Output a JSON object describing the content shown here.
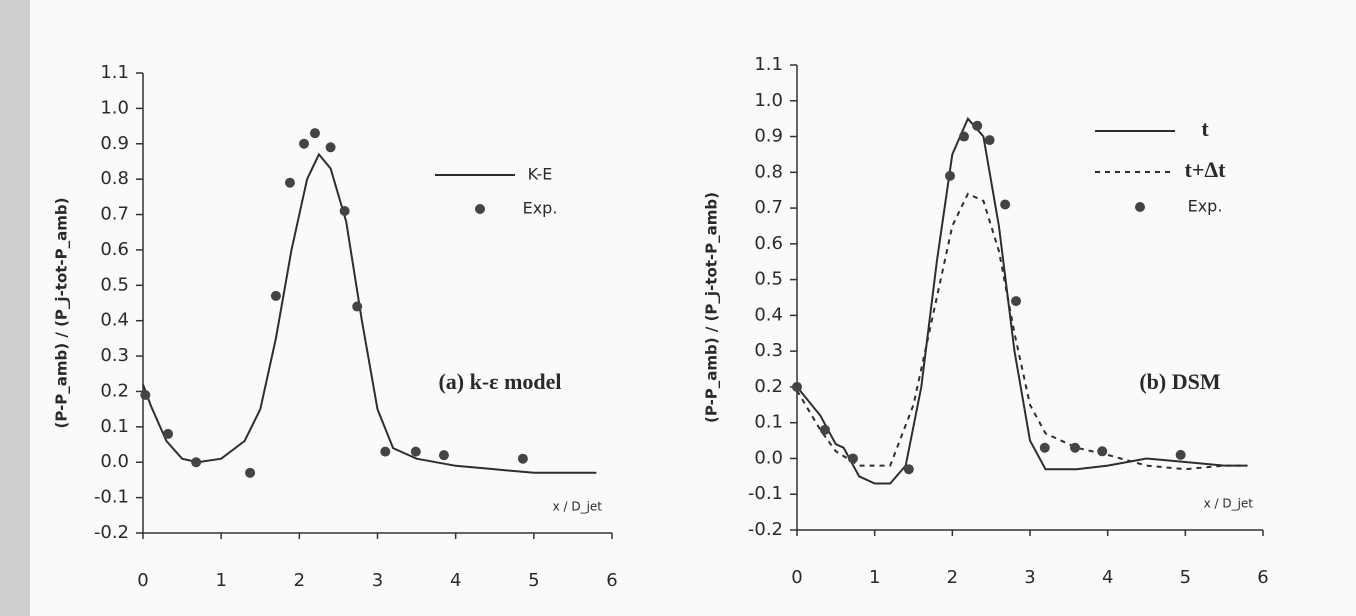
{
  "chart_data": [
    {
      "type": "line",
      "annotation": "(a) k-ε model",
      "x_label": "x / D_jet",
      "y_label": "(P-P_amb) / (P_j-tot-P_amb)",
      "xlim": [
        0,
        6
      ],
      "xticks": [
        0,
        1,
        2,
        3,
        4,
        5,
        6
      ],
      "ylim": [
        -0.2,
        1.1
      ],
      "yticks": [
        -0.2,
        -0.1,
        {
          "value": 0,
          "label": "0.0"
        },
        0.1,
        0.2,
        0.3,
        0.4,
        0.5,
        0.6,
        0.7,
        0.8,
        0.9,
        {
          "value": 1,
          "label": "1.0"
        },
        1.1
      ],
      "series": [
        {
          "name": "K-E",
          "type": "line",
          "style": "solid",
          "color": "#2e2e2e",
          "x": [
            0,
            0.1,
            0.3,
            0.5,
            0.7,
            1.0,
            1.3,
            1.5,
            1.7,
            1.9,
            2.1,
            2.25,
            2.4,
            2.6,
            2.8,
            3.0,
            3.2,
            3.5,
            4.0,
            4.5,
            5.0,
            5.5,
            5.8
          ],
          "values": [
            0.22,
            0.16,
            0.06,
            0.01,
            0.0,
            0.01,
            0.06,
            0.15,
            0.35,
            0.6,
            0.8,
            0.87,
            0.83,
            0.68,
            0.4,
            0.15,
            0.04,
            0.01,
            -0.01,
            -0.02,
            -0.03,
            -0.03,
            -0.03
          ]
        },
        {
          "name": "Exp.",
          "type": "scatter",
          "color": "#444444",
          "x": [
            0.03,
            0.32,
            0.68,
            1.37,
            1.7,
            1.88,
            2.06,
            2.2,
            2.4,
            2.58,
            2.74,
            3.1,
            3.49,
            3.85,
            4.86
          ],
          "values": [
            0.19,
            0.08,
            0.0,
            -0.03,
            0.47,
            0.79,
            0.9,
            0.93,
            0.89,
            0.71,
            0.44,
            0.03,
            0.03,
            0.02,
            0.01
          ]
        }
      ]
    },
    {
      "type": "line",
      "annotation": "(b) DSM",
      "x_label": "x / D_jet",
      "y_label": "(P-P_amb) / (P_j-tot-P_amb)",
      "xlim": [
        0,
        6
      ],
      "xticks": [
        0,
        1,
        2,
        3,
        4,
        5,
        6
      ],
      "ylim": [
        -0.2,
        1.1
      ],
      "yticks": [
        -0.2,
        -0.1,
        {
          "value": 0,
          "label": "0.0"
        },
        0.1,
        0.2,
        0.3,
        0.4,
        0.5,
        0.6,
        0.7,
        0.8,
        0.9,
        {
          "value": 1,
          "label": "1.0"
        },
        1.1
      ],
      "series": [
        {
          "name": "t",
          "type": "line",
          "style": "solid",
          "color": "#2e2e2e",
          "x": [
            0,
            0.3,
            0.5,
            0.6,
            0.8,
            1.0,
            1.2,
            1.4,
            1.6,
            1.8,
            2.0,
            2.2,
            2.4,
            2.6,
            2.8,
            3.0,
            3.2,
            3.6,
            4.0,
            4.5,
            5.0,
            5.5,
            5.8
          ],
          "values": [
            0.2,
            0.12,
            0.04,
            0.03,
            -0.05,
            -0.07,
            -0.07,
            -0.02,
            0.2,
            0.55,
            0.85,
            0.95,
            0.9,
            0.65,
            0.3,
            0.05,
            -0.03,
            -0.03,
            -0.02,
            0.0,
            -0.01,
            -0.02,
            -0.02
          ]
        },
        {
          "name": "t+Δt",
          "type": "line",
          "style": "dashed",
          "color": "#2e2e2e",
          "x": [
            0,
            0.3,
            0.5,
            0.8,
            1.2,
            1.5,
            1.8,
            2.0,
            2.2,
            2.4,
            2.6,
            2.8,
            3.0,
            3.2,
            3.6,
            4.0,
            4.5,
            5.0,
            5.5,
            5.8
          ],
          "values": [
            0.19,
            0.08,
            0.02,
            -0.02,
            -0.02,
            0.15,
            0.45,
            0.65,
            0.74,
            0.72,
            0.58,
            0.35,
            0.15,
            0.07,
            0.03,
            0.01,
            -0.02,
            -0.03,
            -0.02,
            -0.02
          ]
        },
        {
          "name": "Exp.",
          "type": "scatter",
          "color": "#444444",
          "x": [
            0.0,
            0.36,
            0.72,
            1.44,
            1.97,
            2.15,
            2.32,
            2.48,
            2.68,
            2.82,
            3.19,
            3.58,
            3.93,
            4.94
          ],
          "values": [
            0.2,
            0.08,
            0.0,
            -0.03,
            0.79,
            0.9,
            0.93,
            0.89,
            0.71,
            0.44,
            0.03,
            0.03,
            0.02,
            0.01
          ]
        }
      ]
    }
  ]
}
